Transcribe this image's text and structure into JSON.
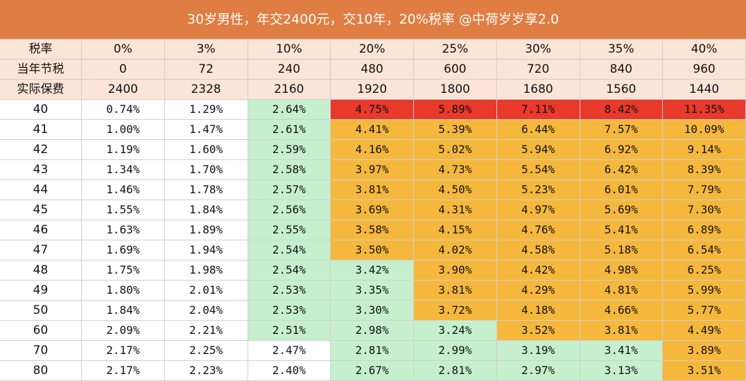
{
  "title": "30岁男性，年交2400元，交10年，20%税率 @中荷岁岁享2.0",
  "title_color": "#e07d43",
  "table": {
    "rows": [
      [
        "税率",
        "0%",
        "3%",
        "10%",
        "20%",
        "25%",
        "30%",
        "35%",
        "40%"
      ],
      [
        "当年节税",
        "0",
        "72",
        "240",
        "480",
        "600",
        "720",
        "840",
        "960"
      ],
      [
        "实际保费",
        "2400",
        "2328",
        "2160",
        "1920",
        "1800",
        "1680",
        "1560",
        "1440"
      ],
      [
        "40",
        "0.74%",
        "1.29%",
        "2.64%",
        "4.75%",
        "5.89%",
        "7.11%",
        "8.42%",
        "11.35%"
      ],
      [
        "41",
        "1.00%",
        "1.47%",
        "2.61%",
        "4.41%",
        "5.39%",
        "6.44%",
        "7.57%",
        "10.09%"
      ],
      [
        "42",
        "1.19%",
        "1.60%",
        "2.59%",
        "4.16%",
        "5.02%",
        "5.94%",
        "6.92%",
        "9.14%"
      ],
      [
        "43",
        "1.34%",
        "1.70%",
        "2.58%",
        "3.97%",
        "4.73%",
        "5.54%",
        "6.42%",
        "8.39%"
      ],
      [
        "44",
        "1.46%",
        "1.78%",
        "2.57%",
        "3.81%",
        "4.50%",
        "5.23%",
        "6.01%",
        "7.79%"
      ],
      [
        "45",
        "1.55%",
        "1.84%",
        "2.56%",
        "3.69%",
        "4.31%",
        "4.97%",
        "5.69%",
        "7.30%"
      ],
      [
        "46",
        "1.63%",
        "1.89%",
        "2.55%",
        "3.58%",
        "4.15%",
        "4.76%",
        "5.41%",
        "6.89%"
      ],
      [
        "47",
        "1.69%",
        "1.94%",
        "2.54%",
        "3.50%",
        "4.02%",
        "4.58%",
        "5.18%",
        "6.54%"
      ],
      [
        "48",
        "1.75%",
        "1.98%",
        "2.54%",
        "3.42%",
        "3.90%",
        "4.42%",
        "4.98%",
        "6.25%"
      ],
      [
        "49",
        "1.80%",
        "2.01%",
        "2.53%",
        "3.35%",
        "3.81%",
        "4.29%",
        "4.81%",
        "5.99%"
      ],
      [
        "50",
        "1.84%",
        "2.04%",
        "2.53%",
        "3.30%",
        "3.72%",
        "4.18%",
        "4.66%",
        "5.77%"
      ],
      [
        "60",
        "2.09%",
        "2.21%",
        "2.51%",
        "2.98%",
        "3.24%",
        "3.52%",
        "3.81%",
        "4.49%"
      ],
      [
        "70",
        "2.17%",
        "2.25%",
        "2.47%",
        "2.81%",
        "2.99%",
        "3.19%",
        "3.41%",
        "3.89%"
      ],
      [
        "80",
        "2.17%",
        "2.23%",
        "2.40%",
        "2.67%",
        "2.81%",
        "2.97%",
        "3.13%",
        "3.51%"
      ]
    ],
    "fills": [
      [
        "#fce4d6",
        "#fce4d6",
        "#fce4d6",
        "#fce4d6",
        "#fce4d6",
        "#fce4d6",
        "#fce4d6",
        "#fce4d6",
        "#fce4d6"
      ],
      [
        "#fce4d6",
        "#fce4d6",
        "#fce4d6",
        "#fce4d6",
        "#fce4d6",
        "#fce4d6",
        "#fce4d6",
        "#fce4d6",
        "#fce4d6"
      ],
      [
        "#fce4d6",
        "#fce4d6",
        "#fce4d6",
        "#fce4d6",
        "#fce4d6",
        "#fce4d6",
        "#fce4d6",
        "#fce4d6",
        "#fce4d6"
      ],
      [
        "#ffffff",
        "#ffffff",
        "#ffffff",
        "#c6efce",
        "#e8392b",
        "#e8392b",
        "#e8392b",
        "#e8392b",
        "#e8392b"
      ],
      [
        "#ffffff",
        "#ffffff",
        "#ffffff",
        "#c6efce",
        "#f5b83d",
        "#f5b83d",
        "#f5b83d",
        "#f5b83d",
        "#f5b83d"
      ],
      [
        "#ffffff",
        "#ffffff",
        "#ffffff",
        "#c6efce",
        "#f5b83d",
        "#f5b83d",
        "#f5b83d",
        "#f5b83d",
        "#f5b83d"
      ],
      [
        "#ffffff",
        "#ffffff",
        "#ffffff",
        "#c6efce",
        "#f5b83d",
        "#f5b83d",
        "#f5b83d",
        "#f5b83d",
        "#f5b83d"
      ],
      [
        "#ffffff",
        "#ffffff",
        "#ffffff",
        "#c6efce",
        "#f5b83d",
        "#f5b83d",
        "#f5b83d",
        "#f5b83d",
        "#f5b83d"
      ],
      [
        "#ffffff",
        "#ffffff",
        "#ffffff",
        "#c6efce",
        "#f5b83d",
        "#f5b83d",
        "#f5b83d",
        "#f5b83d",
        "#f5b83d"
      ],
      [
        "#ffffff",
        "#ffffff",
        "#ffffff",
        "#c6efce",
        "#f5b83d",
        "#f5b83d",
        "#f5b83d",
        "#f5b83d",
        "#f5b83d"
      ],
      [
        "#ffffff",
        "#ffffff",
        "#ffffff",
        "#c6efce",
        "#f5b83d",
        "#f5b83d",
        "#f5b83d",
        "#f5b83d",
        "#f5b83d"
      ],
      [
        "#ffffff",
        "#ffffff",
        "#ffffff",
        "#c6efce",
        "#c6efce",
        "#f5b83d",
        "#f5b83d",
        "#f5b83d",
        "#f5b83d"
      ],
      [
        "#ffffff",
        "#ffffff",
        "#ffffff",
        "#c6efce",
        "#c6efce",
        "#f5b83d",
        "#f5b83d",
        "#f5b83d",
        "#f5b83d"
      ],
      [
        "#ffffff",
        "#ffffff",
        "#ffffff",
        "#c6efce",
        "#c6efce",
        "#f5b83d",
        "#f5b83d",
        "#f5b83d",
        "#f5b83d"
      ],
      [
        "#ffffff",
        "#ffffff",
        "#ffffff",
        "#c6efce",
        "#c6efce",
        "#c6efce",
        "#f5b83d",
        "#f5b83d",
        "#f5b83d"
      ],
      [
        "#ffffff",
        "#ffffff",
        "#ffffff",
        "#ffffff",
        "#c6efce",
        "#c6efce",
        "#c6efce",
        "#c6efce",
        "#f5b83d"
      ],
      [
        "#ffffff",
        "#ffffff",
        "#ffffff",
        "#ffffff",
        "#c6efce",
        "#c6efce",
        "#c6efce",
        "#c6efce",
        "#f5b83d"
      ]
    ]
  }
}
